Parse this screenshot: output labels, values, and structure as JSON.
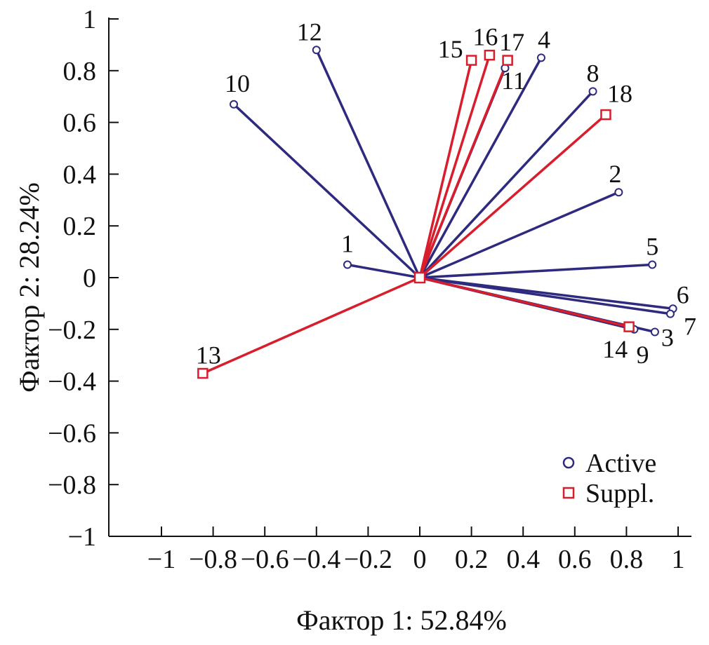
{
  "chart_data": {
    "type": "scatter",
    "subtype": "factor-loading-vectors",
    "xlabel": "Фактор 1: 52.84%",
    "ylabel": "Фактор 2: 28.24%",
    "xlim": [
      -1.2,
      1.05
    ],
    "ylim": [
      -1,
      1
    ],
    "xticks": [
      -1,
      -0.8,
      -0.6,
      -0.4,
      -0.2,
      0,
      0.2,
      0.4,
      0.6,
      0.8,
      1
    ],
    "xtick_labels": [
      "−1",
      "−0.8",
      "−0.6",
      "−0.4",
      "−0.2",
      "0",
      "0.2",
      "0.4",
      "0.6",
      "0.8",
      "1"
    ],
    "yticks": [
      1,
      0.8,
      0.6,
      0.4,
      0.2,
      0,
      -0.2,
      -0.4,
      -0.6,
      -0.8,
      -1
    ],
    "ytick_labels": [
      "1",
      "0.8",
      "0.6",
      "0.4",
      "0.2",
      "0",
      "−0.2",
      "−0.4",
      "−0.6",
      "−0.8",
      "−1"
    ],
    "origin": {
      "x": 0,
      "y": 0
    },
    "legend": {
      "position": "bottom-right",
      "entries": [
        {
          "name": "Active",
          "marker": "circle"
        },
        {
          "name": "Suppl.",
          "marker": "square"
        }
      ]
    },
    "colors": {
      "active": "#2e2a7e",
      "suppl": "#d81e2c"
    },
    "series": [
      {
        "name": "Active",
        "marker": "circle",
        "points": [
          {
            "label": "1",
            "x": -0.28,
            "y": 0.05
          },
          {
            "label": "2",
            "x": 0.77,
            "y": 0.33
          },
          {
            "label": "3",
            "x": 0.91,
            "y": -0.21
          },
          {
            "label": "4",
            "x": 0.47,
            "y": 0.85
          },
          {
            "label": "5",
            "x": 0.9,
            "y": 0.05
          },
          {
            "label": "6",
            "x": 0.98,
            "y": -0.12
          },
          {
            "label": "7",
            "x": 0.97,
            "y": -0.14
          },
          {
            "label": "8",
            "x": 0.67,
            "y": 0.72
          },
          {
            "label": "9",
            "x": 0.83,
            "y": -0.2
          },
          {
            "label": "10",
            "x": -0.72,
            "y": 0.67
          },
          {
            "label": "11",
            "x": 0.33,
            "y": 0.81
          },
          {
            "label": "12",
            "x": -0.4,
            "y": 0.88
          }
        ]
      },
      {
        "name": "Suppl.",
        "marker": "square",
        "points": [
          {
            "label": "13",
            "x": -0.84,
            "y": -0.37
          },
          {
            "label": "14",
            "x": 0.81,
            "y": -0.19
          },
          {
            "label": "15",
            "x": 0.2,
            "y": 0.84
          },
          {
            "label": "16",
            "x": 0.27,
            "y": 0.86
          },
          {
            "label": "17",
            "x": 0.34,
            "y": 0.84
          },
          {
            "label": "18",
            "x": 0.72,
            "y": 0.63
          }
        ]
      }
    ]
  }
}
